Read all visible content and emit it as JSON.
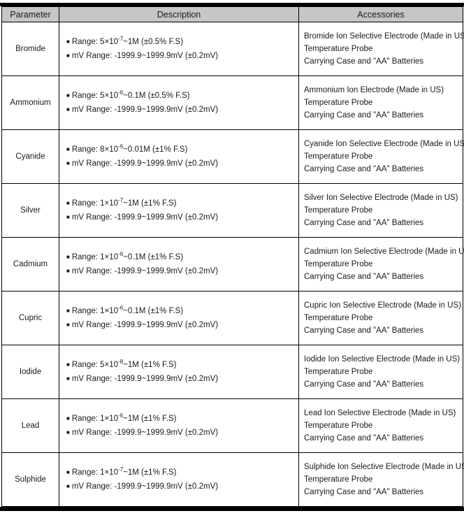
{
  "table": {
    "headers": [
      "Parameter",
      "Description",
      "Accessories"
    ],
    "bullet": "■",
    "rows": [
      {
        "parameter": "Bromide",
        "range": {
          "prefix": "Range: 5×10",
          "exp": "-7",
          "suffix": "~1M (±0.5% F.S)"
        },
        "mv_range": "mV Range: -1999.9~1999.9mV (±0.2mV)",
        "accessories": [
          "Bromide Ion Selective Electrode (Made in US)",
          "Temperature Probe",
          "Carrying Case and \"AA\" Batteries"
        ]
      },
      {
        "parameter": "Ammonium",
        "range": {
          "prefix": "Range: 5×10",
          "exp": "-6",
          "suffix": "~0.1M (±0.5% F.S)"
        },
        "mv_range": "mV Range: -1999.9~1999.9mV (±0.2mV)",
        "accessories": [
          "Ammonium Ion Electrode (Made in US)",
          "Temperature Probe",
          "Carrying Case and \"AA\" Batteries"
        ]
      },
      {
        "parameter": "Cyanide",
        "range": {
          "prefix": "Range: 8×10",
          "exp": "-6",
          "suffix": "~0.01M (±1% F.S)"
        },
        "mv_range": "mV Range: -1999.9~1999.9mV (±0.2mV)",
        "accessories": [
          "Cyanide Ion Selective Electrode (Made in US)",
          "Temperature Probe",
          "Carrying Case and \"AA\" Batteries"
        ]
      },
      {
        "parameter": "Silver",
        "range": {
          "prefix": "Range: 1×10",
          "exp": "-7",
          "suffix": "~1M (±1% F.S)"
        },
        "mv_range": "mV Range: -1999.9~1999.9mV (±0.2mV)",
        "accessories": [
          "Silver Ion Selective Electrode (Made in US)",
          "Temperature Probe",
          "Carrying Case and \"AA\" Batteries"
        ]
      },
      {
        "parameter": "Cadmium",
        "range": {
          "prefix": "Range: 1×10",
          "exp": "-6",
          "suffix": "~0.1M (±1% F.S)"
        },
        "mv_range": "mV Range: -1999.9~1999.9mV (±0.2mV)",
        "accessories": [
          "Cadmium Ion Selective Electrode (Made in US)",
          "Temperature Probe",
          "Carrying Case and \"AA\" Batteries"
        ]
      },
      {
        "parameter": "Cupric",
        "range": {
          "prefix": "Range: 1×10",
          "exp": "-6",
          "suffix": "~0.1M (±1% F.S)"
        },
        "mv_range": "mV Range: -1999.9~1999.9mV (±0.2mV)",
        "accessories": [
          "Cupric Ion Selective Electrode (Made in US)",
          "Temperature Probe",
          "Carrying Case and \"AA\" Batteries"
        ]
      },
      {
        "parameter": "Iodide",
        "range": {
          "prefix": "Range: 5×10",
          "exp": "-8",
          "suffix": "~1M (±1% F.S)"
        },
        "mv_range": "mV Range: -1999.9~1999.9mV (±0.2mV)",
        "accessories": [
          "Iodide Ion Selective Electrode (Made in US)",
          "Temperature Probe",
          "Carrying Case and \"AA\" Batteries"
        ]
      },
      {
        "parameter": "Lead",
        "range": {
          "prefix": "Range: 1×10",
          "exp": "-6",
          "suffix": "~1M (±1% F.S)"
        },
        "mv_range": "mV Range: -1999.9~1999.9mV (±0.2mV)",
        "accessories": [
          "Lead Ion Selective Electrode (Made in US)",
          "Temperature Probe",
          "Carrying Case and \"AA\" Batteries"
        ]
      },
      {
        "parameter": "Sulphide",
        "range": {
          "prefix": "Range: 1×10",
          "exp": "-7",
          "suffix": "~1M (±1% F.S)"
        },
        "mv_range": "mV Range: -1999.9~1999.9mV (±0.2mV)",
        "accessories": [
          "Sulphide Ion Selective Electrode (Made in US)",
          "Temperature Probe",
          "Carrying Case and \"AA\" Batteries"
        ]
      }
    ]
  },
  "colors": {
    "header_bg": "#c6c6c6",
    "border": "#000000",
    "text": "#1a1a1a",
    "background": "#ffffff"
  }
}
